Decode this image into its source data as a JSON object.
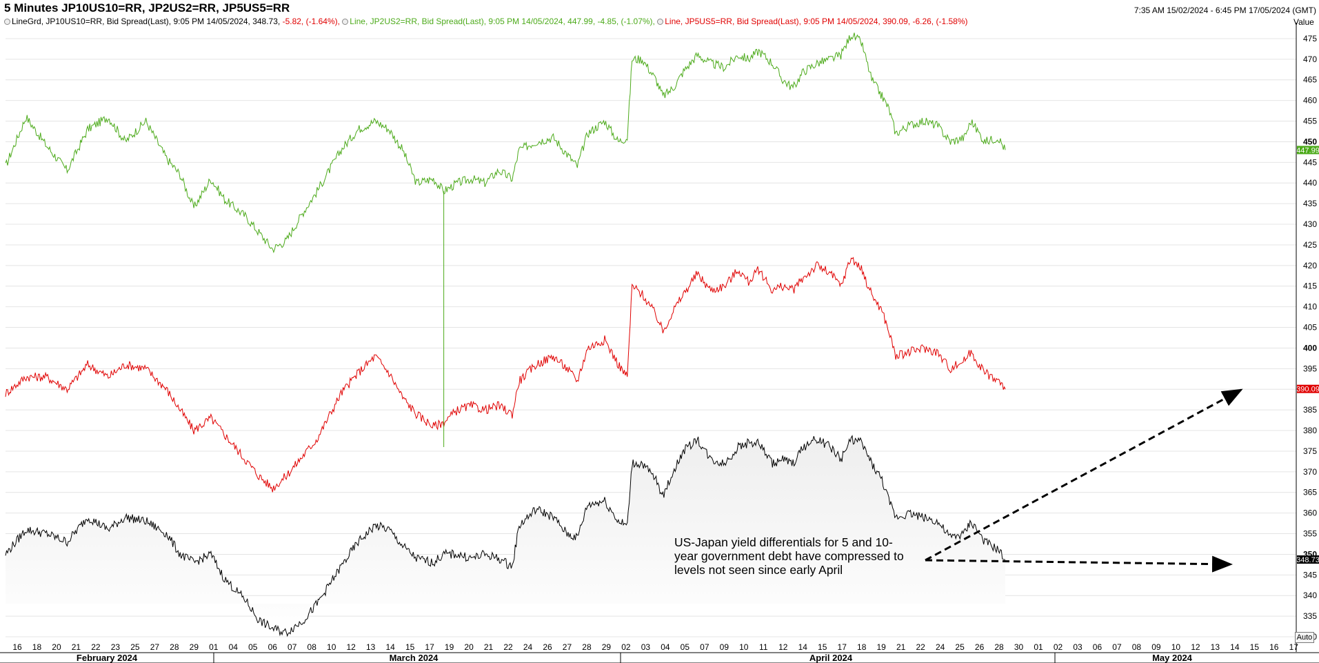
{
  "header": {
    "title": "5 Minutes JP10US10=RR, JP2US2=RR, JP5US5=RR",
    "range": "7:35 AM 15/02/2024 - 6:45 PM 17/05/2024 (GMT)",
    "value_label": "Value",
    "auto_label": "Auto"
  },
  "legend": [
    {
      "text": "LineGrd, JP10US10=RR, Bid Spread(Last), 9:05 PM 14/05/2024, 348.73, ",
      "change": "-5.82, (-1.64%),",
      "color": "#000000",
      "change_color": "#e00000"
    },
    {
      "text": "Line, JP2US2=RR, Bid Spread(Last), 9:05 PM 14/05/2024, 447.99, -4.85, (-1.07%),",
      "change": "",
      "color": "#4caa1a",
      "change_color": "#4caa1a"
    },
    {
      "text": "Line, JP5US5=RR, Bid Spread(Last), 9:05 PM 14/05/2024, 390.09, -6.26, (-1.58%)",
      "change": "",
      "color": "#e00000",
      "change_color": "#e00000"
    }
  ],
  "annotation": "US-Japan yield differentials for 5 and 10-year government debt have compressed to levels not seen since early April",
  "chart_data": {
    "type": "line",
    "ylim": [
      328,
      478
    ],
    "y_ticks": [
      330,
      335,
      340,
      345,
      350,
      355,
      360,
      365,
      370,
      375,
      380,
      385,
      390,
      395,
      400,
      405,
      410,
      415,
      420,
      425,
      430,
      435,
      440,
      445,
      450,
      455,
      460,
      465,
      470,
      475
    ],
    "y_bold_ticks": [
      350,
      400,
      450
    ],
    "x_ticks": [
      "16",
      "18",
      "20",
      "21",
      "22",
      "23",
      "25",
      "27",
      "28",
      "29",
      "01",
      "04",
      "05",
      "06",
      "07",
      "08",
      "10",
      "12",
      "13",
      "14",
      "15",
      "17",
      "19",
      "20",
      "21",
      "22",
      "24",
      "26",
      "27",
      "28",
      "29",
      "02",
      "03",
      "04",
      "05",
      "07",
      "09",
      "10",
      "11",
      "12",
      "14",
      "15",
      "17",
      "18",
      "19",
      "21",
      "22",
      "24",
      "25",
      "26",
      "28",
      "30",
      "01",
      "02",
      "03",
      "06",
      "07",
      "08",
      "09",
      "10",
      "12",
      "13",
      "14",
      "15",
      "16",
      "17"
    ],
    "months": [
      "February 2024",
      "March 2024",
      "April 2024",
      "May 2024"
    ],
    "last_values": {
      "JP2US2=RR": "447.99",
      "JP5US5=RR": "390.09",
      "JP10US10=RR": "348.73"
    },
    "series": [
      {
        "name": "JP2US2=RR",
        "color": "#4caa1a",
        "values": [
          [
            0,
            444
          ],
          [
            30,
            456
          ],
          [
            60,
            449
          ],
          [
            90,
            443
          ],
          [
            120,
            453
          ],
          [
            150,
            456
          ],
          [
            175,
            450
          ],
          [
            205,
            455
          ],
          [
            235,
            446
          ],
          [
            255,
            442
          ],
          [
            275,
            434
          ],
          [
            300,
            441
          ],
          [
            320,
            436
          ],
          [
            350,
            432
          ],
          [
            370,
            428
          ],
          [
            390,
            424
          ],
          [
            410,
            426
          ],
          [
            435,
            433
          ],
          [
            455,
            438
          ],
          [
            490,
            448
          ],
          [
            515,
            453
          ],
          [
            540,
            455
          ],
          [
            560,
            453
          ],
          [
            580,
            448
          ],
          [
            600,
            440
          ],
          [
            625,
            441
          ],
          [
            640,
            438
          ],
          [
            660,
            440
          ],
          [
            680,
            441
          ],
          [
            700,
            440
          ],
          [
            720,
            443
          ],
          [
            740,
            441
          ],
          [
            750,
            448
          ],
          [
            775,
            450
          ],
          [
            800,
            451
          ],
          [
            820,
            447
          ],
          [
            835,
            444
          ],
          [
            850,
            452
          ],
          [
            875,
            455
          ],
          [
            895,
            450
          ],
          [
            908,
            451
          ],
          [
            915,
            470
          ],
          [
            930,
            470
          ],
          [
            950,
            465
          ],
          [
            960,
            461
          ],
          [
            975,
            463
          ],
          [
            990,
            467
          ],
          [
            1010,
            471
          ],
          [
            1030,
            469
          ],
          [
            1050,
            468
          ],
          [
            1070,
            471
          ],
          [
            1085,
            470
          ],
          [
            1100,
            472
          ],
          [
            1120,
            469
          ],
          [
            1135,
            465
          ],
          [
            1150,
            463
          ],
          [
            1165,
            467
          ],
          [
            1185,
            469
          ],
          [
            1205,
            470
          ],
          [
            1220,
            471
          ],
          [
            1235,
            476
          ],
          [
            1250,
            474
          ],
          [
            1265,
            465
          ],
          [
            1280,
            461
          ],
          [
            1290,
            458
          ],
          [
            1300,
            452
          ],
          [
            1320,
            454
          ],
          [
            1340,
            455
          ],
          [
            1360,
            454
          ],
          [
            1380,
            450
          ],
          [
            1400,
            451
          ],
          [
            1410,
            455
          ],
          [
            1430,
            450
          ],
          [
            1450,
            451
          ],
          [
            1460,
            448
          ]
        ]
      },
      {
        "name": "JP5US5=RR",
        "color": "#e00000",
        "values": [
          [
            0,
            389
          ],
          [
            30,
            393
          ],
          [
            60,
            393
          ],
          [
            90,
            390
          ],
          [
            120,
            396
          ],
          [
            150,
            393
          ],
          [
            175,
            396
          ],
          [
            205,
            395
          ],
          [
            235,
            390
          ],
          [
            255,
            385
          ],
          [
            275,
            380
          ],
          [
            300,
            383
          ],
          [
            320,
            379
          ],
          [
            350,
            373
          ],
          [
            370,
            369
          ],
          [
            390,
            366
          ],
          [
            410,
            369
          ],
          [
            435,
            374
          ],
          [
            455,
            378
          ],
          [
            490,
            389
          ],
          [
            515,
            394
          ],
          [
            540,
            398
          ],
          [
            560,
            394
          ],
          [
            580,
            388
          ],
          [
            600,
            384
          ],
          [
            625,
            381
          ],
          [
            640,
            382
          ],
          [
            660,
            385
          ],
          [
            680,
            386
          ],
          [
            700,
            385
          ],
          [
            720,
            386
          ],
          [
            740,
            384
          ],
          [
            750,
            392
          ],
          [
            775,
            396
          ],
          [
            800,
            398
          ],
          [
            820,
            395
          ],
          [
            835,
            392
          ],
          [
            850,
            400
          ],
          [
            875,
            402
          ],
          [
            895,
            396
          ],
          [
            908,
            393
          ],
          [
            915,
            415
          ],
          [
            930,
            413
          ],
          [
            950,
            408
          ],
          [
            960,
            404
          ],
          [
            975,
            409
          ],
          [
            990,
            413
          ],
          [
            1010,
            418
          ],
          [
            1030,
            414
          ],
          [
            1050,
            415
          ],
          [
            1070,
            419
          ],
          [
            1085,
            416
          ],
          [
            1100,
            419
          ],
          [
            1120,
            414
          ],
          [
            1135,
            415
          ],
          [
            1150,
            414
          ],
          [
            1165,
            417
          ],
          [
            1185,
            420
          ],
          [
            1205,
            418
          ],
          [
            1220,
            415
          ],
          [
            1235,
            422
          ],
          [
            1250,
            419
          ],
          [
            1265,
            413
          ],
          [
            1280,
            409
          ],
          [
            1290,
            404
          ],
          [
            1300,
            398
          ],
          [
            1320,
            399
          ],
          [
            1340,
            400
          ],
          [
            1360,
            399
          ],
          [
            1380,
            395
          ],
          [
            1400,
            397
          ],
          [
            1410,
            399
          ],
          [
            1430,
            394
          ],
          [
            1450,
            392
          ],
          [
            1460,
            390
          ]
        ]
      },
      {
        "name": "JP10US10=RR",
        "color": "#000000",
        "values": [
          [
            0,
            350
          ],
          [
            30,
            356
          ],
          [
            60,
            355
          ],
          [
            90,
            353
          ],
          [
            120,
            359
          ],
          [
            150,
            356
          ],
          [
            175,
            359
          ],
          [
            205,
            358
          ],
          [
            235,
            355
          ],
          [
            255,
            350
          ],
          [
            275,
            348
          ],
          [
            300,
            350
          ],
          [
            320,
            344
          ],
          [
            350,
            339
          ],
          [
            370,
            334
          ],
          [
            390,
            332
          ],
          [
            410,
            331
          ],
          [
            435,
            334
          ],
          [
            455,
            338
          ],
          [
            490,
            347
          ],
          [
            515,
            353
          ],
          [
            540,
            357
          ],
          [
            560,
            356
          ],
          [
            580,
            352
          ],
          [
            600,
            349
          ],
          [
            625,
            348
          ],
          [
            640,
            350
          ],
          [
            660,
            350
          ],
          [
            680,
            349
          ],
          [
            700,
            350
          ],
          [
            720,
            349
          ],
          [
            740,
            347
          ],
          [
            750,
            357
          ],
          [
            775,
            361
          ],
          [
            800,
            359
          ],
          [
            820,
            355
          ],
          [
            835,
            354
          ],
          [
            850,
            362
          ],
          [
            875,
            363
          ],
          [
            895,
            358
          ],
          [
            908,
            357
          ],
          [
            915,
            372
          ],
          [
            930,
            372
          ],
          [
            950,
            368
          ],
          [
            960,
            364
          ],
          [
            975,
            370
          ],
          [
            990,
            375
          ],
          [
            1010,
            378
          ],
          [
            1030,
            373
          ],
          [
            1050,
            372
          ],
          [
            1070,
            376
          ],
          [
            1085,
            377
          ],
          [
            1100,
            377
          ],
          [
            1120,
            372
          ],
          [
            1135,
            373
          ],
          [
            1150,
            372
          ],
          [
            1165,
            376
          ],
          [
            1185,
            378
          ],
          [
            1205,
            376
          ],
          [
            1220,
            373
          ],
          [
            1235,
            378
          ],
          [
            1250,
            377
          ],
          [
            1265,
            372
          ],
          [
            1280,
            368
          ],
          [
            1290,
            363
          ],
          [
            1300,
            359
          ],
          [
            1320,
            360
          ],
          [
            1340,
            359
          ],
          [
            1360,
            358
          ],
          [
            1380,
            354
          ],
          [
            1400,
            355
          ],
          [
            1410,
            358
          ],
          [
            1430,
            353
          ],
          [
            1450,
            351
          ],
          [
            1460,
            348.7
          ]
        ]
      }
    ]
  }
}
